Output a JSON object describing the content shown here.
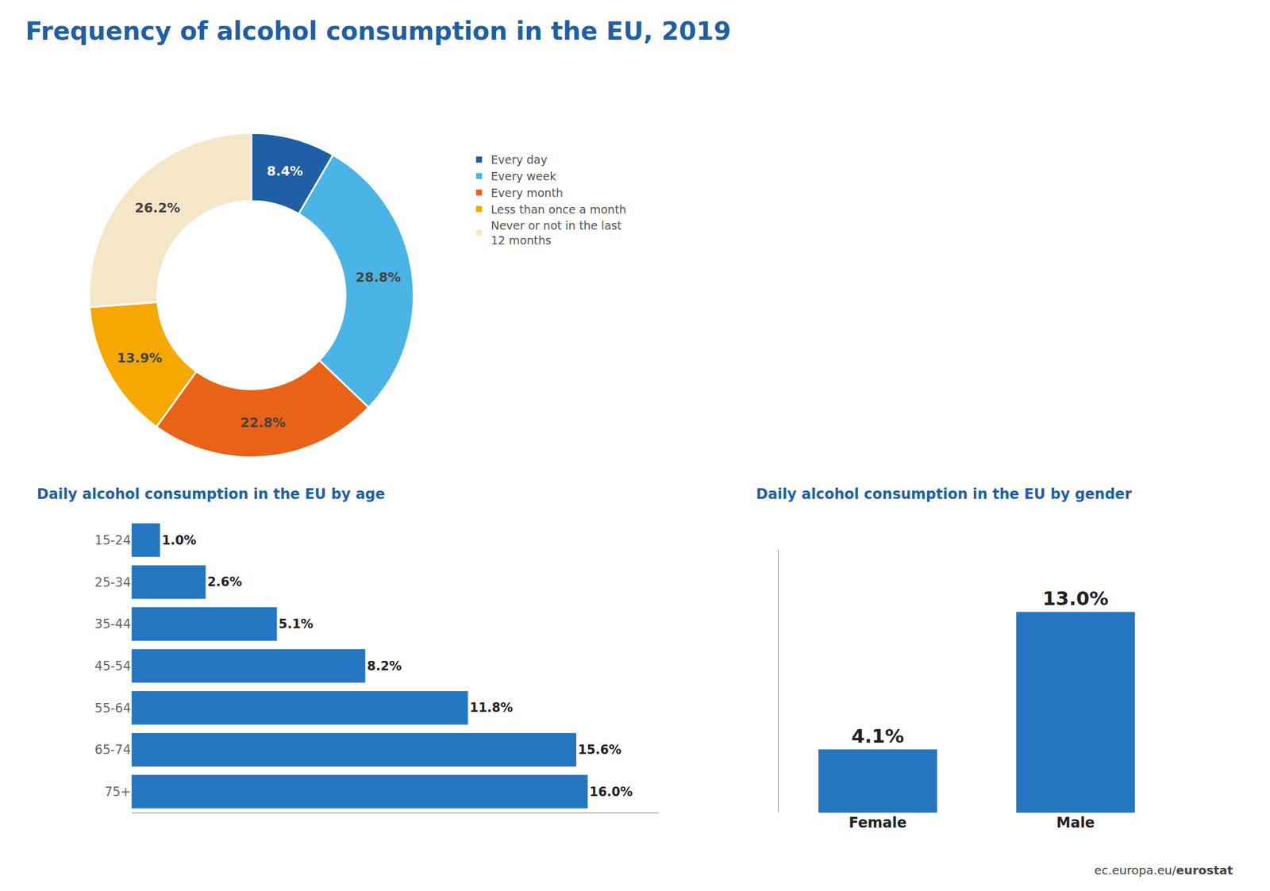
{
  "title": "Frequency of alcohol consumption in the EU, 2019",
  "annotations": [
    "ec.europa.eu/",
    "eurostat"
  ],
  "chart_data": [
    {
      "type": "pie",
      "categories": [
        "Every day",
        "Every week",
        "Every month",
        "Less than once a month",
        "Never or not in the last\n12 months"
      ],
      "values": [
        8.4,
        28.8,
        22.8,
        13.9,
        26.2
      ],
      "value_labels": [
        "8.4%",
        "28.8%",
        "22.8%",
        "13.9%",
        "26.2%"
      ],
      "colors": [
        "#1f5fa6",
        "#4ab4e6",
        "#e86317",
        "#f5a800",
        "#f5e6c8"
      ],
      "data_labels": true,
      "legend": "right"
    },
    {
      "type": "bar",
      "title": "Daily alcohol consumption in the EU by age",
      "orientation": "horizontal",
      "categories": [
        "15-24",
        "25-34",
        "35-44",
        "45-54",
        "55-64",
        "65-74",
        "75+"
      ],
      "values": [
        1.0,
        2.6,
        5.1,
        8.2,
        11.8,
        15.6,
        16.0
      ],
      "value_labels": [
        "1.0%",
        "2.6%",
        "5.1%",
        "8.2%",
        "11.8%",
        "15.6%",
        "16.0%"
      ],
      "color": "#2576c0",
      "xlim": [
        0,
        18.5
      ],
      "data_labels": true,
      "tick_labels": "y",
      "grid": false
    },
    {
      "type": "bar",
      "title": "Daily alcohol consumption in the EU by gender",
      "categories": [
        "Female",
        "Male"
      ],
      "values": [
        4.1,
        13.0
      ],
      "value_labels": [
        "4.1%",
        "13.0%"
      ],
      "color": "#2576c0",
      "ylim": [
        0,
        17
      ],
      "data_labels": true,
      "tick_labels": "x",
      "grid": false
    }
  ]
}
